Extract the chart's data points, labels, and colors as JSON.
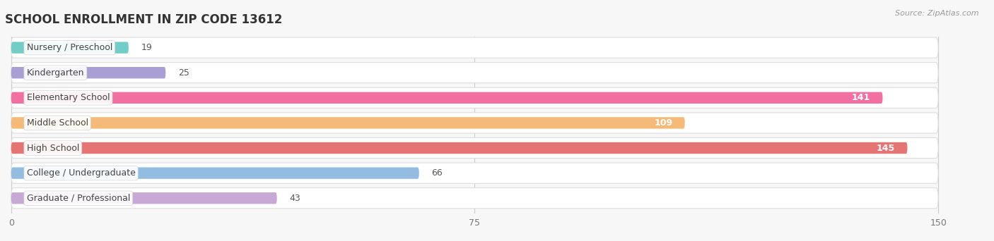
{
  "title": "SCHOOL ENROLLMENT IN ZIP CODE 13612",
  "source": "Source: ZipAtlas.com",
  "categories": [
    "Nursery / Preschool",
    "Kindergarten",
    "Elementary School",
    "Middle School",
    "High School",
    "College / Undergraduate",
    "Graduate / Professional"
  ],
  "values": [
    19,
    25,
    141,
    109,
    145,
    66,
    43
  ],
  "bar_colors": [
    "#72cdc8",
    "#a99fd5",
    "#f16fa1",
    "#f5b978",
    "#e57575",
    "#92bde0",
    "#c8a8d5"
  ],
  "xlim_data": [
    0,
    150
  ],
  "xticks": [
    0,
    75,
    150
  ],
  "background_color": "#f7f7f7",
  "row_bg_color": "#ececec",
  "row_bg_color_alt": "#f0f0f0",
  "title_fontsize": 12,
  "label_fontsize": 9,
  "value_fontsize": 9,
  "source_fontsize": 8
}
